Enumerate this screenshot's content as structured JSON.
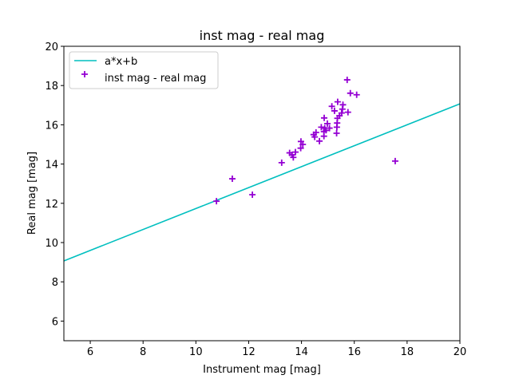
{
  "chart_data": {
    "type": "scatter",
    "title": "inst mag - real mag",
    "xlabel": "Instrument mag [mag]",
    "ylabel": "Real mag [mag]",
    "xlim": [
      5,
      20
    ],
    "ylim": [
      5,
      20
    ],
    "xticks": [
      6,
      8,
      10,
      12,
      14,
      16,
      18,
      20
    ],
    "yticks": [
      6,
      8,
      10,
      12,
      14,
      16,
      18,
      20
    ],
    "grid": false,
    "legend_position": "top-left",
    "series": [
      {
        "name": "a*x+b",
        "kind": "line",
        "color": "#00bfbf",
        "slope": 0.5333,
        "intercept": 6.4
      },
      {
        "name": "inst mag - real mag",
        "kind": "scatter",
        "marker": "+",
        "color": "#9400d3",
        "x": [
          15.73,
          15.85,
          16.09,
          15.37,
          15.15,
          15.57,
          15.25,
          15.55,
          15.76,
          15.52,
          15.44,
          15.36,
          14.86,
          15.35,
          14.98,
          14.75,
          15.06,
          14.88,
          14.93,
          15.34,
          14.85,
          15.33,
          14.85,
          14.46,
          14.55,
          14.5,
          14.68,
          13.98,
          14.05,
          13.97,
          13.77,
          13.55,
          13.64,
          13.69,
          13.25,
          10.78,
          11.38,
          12.14,
          17.55
        ],
        "y": [
          18.29,
          17.61,
          17.53,
          17.17,
          16.94,
          17.02,
          16.71,
          16.8,
          16.64,
          16.6,
          16.46,
          16.33,
          16.35,
          16.09,
          16.06,
          15.88,
          15.83,
          15.83,
          15.72,
          15.88,
          15.65,
          15.57,
          15.42,
          15.5,
          15.61,
          15.38,
          15.17,
          15.15,
          15.0,
          14.81,
          14.61,
          14.57,
          14.47,
          14.34,
          14.07,
          12.11,
          13.25,
          12.44,
          14.15
        ]
      }
    ]
  }
}
